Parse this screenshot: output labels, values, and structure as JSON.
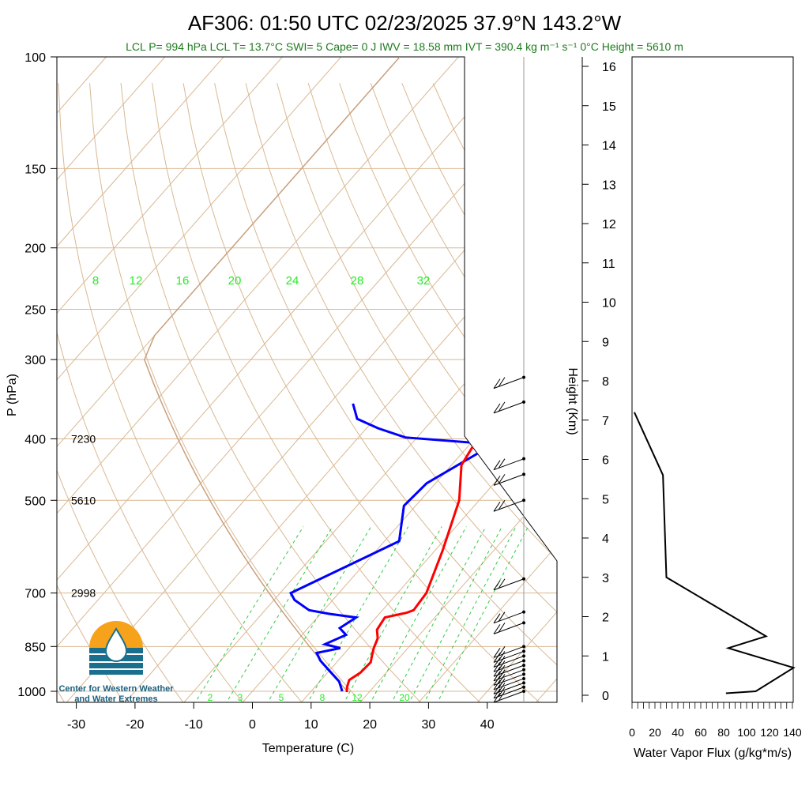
{
  "title": "AF306: 01:50 UTC 02/23/2025  37.9°N 143.2°W",
  "subtitle": "LCL P= 994 hPa  LCL T= 13.7°C  SWI= 5  Cape= 0 J  IWV = 18.58 mm  IVT = 390.4 kg m⁻¹ s⁻¹  0°C Height = 5610 m",
  "logo_text": [
    "Center for Western Weather",
    "and Water Extremes"
  ],
  "colors": {
    "temperature": "#ff0000",
    "dewpoint": "#0000ff",
    "parcel": "#c8a07e",
    "isotherm": "#d9b892",
    "mixing_ratio": "#2ecc40",
    "subtitle": "#1e7a1e",
    "flux": "#000000"
  },
  "chart_data": [
    {
      "type": "line",
      "name": "skew-t",
      "xlabel": "Temperature (C)",
      "ylabel": "P (hPa)",
      "xlim": [
        -34,
        50
      ],
      "ylim": [
        1000,
        100
      ],
      "y_scale": "log",
      "x_ticks": [
        -30,
        -20,
        -10,
        0,
        10,
        20,
        30,
        40
      ],
      "y_ticks": [
        100,
        150,
        200,
        250,
        300,
        400,
        500,
        700,
        850,
        1000
      ],
      "height_labels": [
        {
          "p": 400,
          "text": "7230"
        },
        {
          "p": 500,
          "text": "5610"
        },
        {
          "p": 700,
          "text": "2998"
        }
      ],
      "mixing_ratio_labels": [
        "8",
        "12",
        "16",
        "20",
        "24",
        "28",
        "32"
      ],
      "mixing_ratio_bottom_labels": [
        "2",
        "3",
        "5",
        "8",
        "12",
        "20"
      ],
      "temperature": [
        [
          1003,
          16.2
        ],
        [
          985,
          15.5
        ],
        [
          960,
          14.8
        ],
        [
          935,
          15.6
        ],
        [
          900,
          15.8
        ],
        [
          878,
          15.0
        ],
        [
          855,
          14.2
        ],
        [
          825,
          13.4
        ],
        [
          800,
          12.0
        ],
        [
          765,
          11.5
        ],
        [
          752,
          14.5
        ],
        [
          745,
          15.3
        ],
        [
          700,
          14.9
        ],
        [
          600,
          11.3
        ],
        [
          500,
          6.6
        ],
        [
          440,
          1.7
        ],
        [
          400,
          0.5
        ],
        [
          372,
          0.5
        ],
        [
          352,
          2.0
        ]
      ],
      "dewpoint": [
        [
          1000,
          15.3
        ],
        [
          965,
          13.3
        ],
        [
          930,
          10.2
        ],
        [
          895,
          7.0
        ],
        [
          870,
          5.2
        ],
        [
          855,
          8.5
        ],
        [
          843,
          5.3
        ],
        [
          815,
          7.5
        ],
        [
          795,
          5.4
        ],
        [
          765,
          6.6
        ],
        [
          755,
          1.5
        ],
        [
          745,
          -2.5
        ],
        [
          718,
          -6.5
        ],
        [
          700,
          -8.2
        ],
        [
          580,
          2.5
        ],
        [
          510,
          -2.0
        ],
        [
          470,
          -1.5
        ],
        [
          408,
          4.0
        ],
        [
          398,
          -12.0
        ],
        [
          385,
          -18.0
        ],
        [
          372,
          -23.0
        ],
        [
          352,
          -26.0
        ]
      ]
    },
    {
      "type": "barbs",
      "name": "wind-profile",
      "barb_pressures": [
        1000,
        985,
        970,
        955,
        940,
        925,
        910,
        895,
        880,
        865,
        850,
        780,
        750,
        665,
        500,
        455,
        430,
        350,
        320
      ]
    },
    {
      "type": "line",
      "name": "water-vapor-flux",
      "xlabel": "Water Vapor Flux (g/kg*m/s)",
      "ylabel": "Height (Km)",
      "xlim": [
        0,
        140
      ],
      "ylim": [
        0,
        16
      ],
      "x_ticks": [
        0,
        20,
        40,
        60,
        80,
        100,
        120,
        140
      ],
      "y_ticks": [
        0,
        1,
        2,
        3,
        4,
        5,
        6,
        7,
        8,
        9,
        10,
        11,
        12,
        13,
        14,
        15,
        16
      ],
      "points": [
        [
          82,
          0.05
        ],
        [
          108,
          0.1
        ],
        [
          141,
          0.7
        ],
        [
          84,
          1.2
        ],
        [
          117,
          1.5
        ],
        [
          30,
          3.0
        ],
        [
          27,
          5.6
        ],
        [
          2,
          7.2
        ]
      ]
    }
  ]
}
